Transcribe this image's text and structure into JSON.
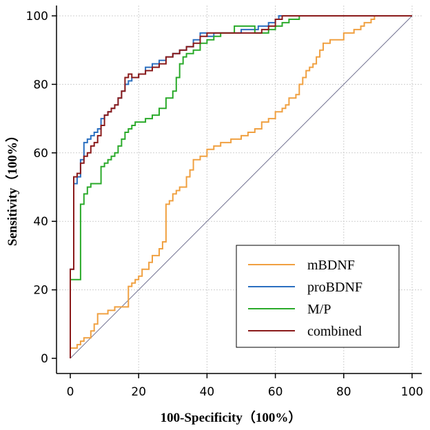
{
  "chart_data": {
    "type": "line",
    "title": "",
    "xlabel": "100-Specificity（100%）",
    "ylabel": "Sensitivity（100%）",
    "xlim": [
      0,
      100
    ],
    "ylim": [
      0,
      100
    ],
    "xticks": [
      "0",
      "20",
      "40",
      "60",
      "80",
      "100"
    ],
    "yticks": [
      "0",
      "20",
      "40",
      "60",
      "80",
      "100"
    ],
    "grid": true,
    "legend_position": "bottom-right",
    "reference_line": {
      "x": [
        0,
        100
      ],
      "y": [
        0,
        100
      ],
      "color": "#6f6f8f"
    },
    "series": [
      {
        "name": "mBDNF",
        "color": "#f0a040",
        "x": [
          0,
          0,
          2,
          2,
          3,
          3,
          4,
          4,
          6,
          6,
          7,
          7,
          8,
          8,
          11,
          11,
          13,
          13,
          17,
          17,
          18,
          18,
          19,
          19,
          20,
          20,
          21,
          21,
          23,
          23,
          24,
          24,
          26,
          26,
          27,
          27,
          28,
          28,
          29,
          29,
          30,
          30,
          31,
          31,
          32,
          32,
          34,
          34,
          35,
          35,
          36,
          36,
          38,
          38,
          40,
          40,
          42,
          42,
          44,
          44,
          47,
          47,
          50,
          50,
          52,
          52,
          54,
          54,
          56,
          56,
          58,
          58,
          60,
          60,
          62,
          62,
          63,
          63,
          64,
          64,
          66,
          66,
          67,
          67,
          68,
          68,
          69,
          69,
          70,
          70,
          71,
          71,
          72,
          72,
          73,
          73,
          74,
          74,
          76,
          76,
          80,
          80,
          83,
          83,
          85,
          85,
          86,
          86,
          88,
          88,
          89,
          89,
          90,
          90,
          92,
          92,
          100
        ],
        "y": [
          0,
          3,
          3,
          4,
          4,
          5,
          5,
          6,
          6,
          8,
          8,
          10,
          10,
          13,
          13,
          14,
          14,
          15,
          15,
          21,
          21,
          22,
          22,
          23,
          23,
          24,
          24,
          26,
          26,
          28,
          28,
          30,
          30,
          32,
          32,
          34,
          34,
          45,
          45,
          46,
          46,
          48,
          48,
          49,
          49,
          50,
          50,
          53,
          53,
          55,
          55,
          58,
          58,
          59,
          59,
          61,
          61,
          62,
          62,
          63,
          63,
          64,
          64,
          65,
          65,
          66,
          66,
          67,
          67,
          69,
          69,
          70,
          70,
          72,
          72,
          73,
          73,
          74,
          74,
          76,
          76,
          77,
          77,
          80,
          80,
          82,
          82,
          84,
          84,
          85,
          85,
          86,
          86,
          88,
          88,
          90,
          90,
          92,
          92,
          93,
          93,
          95,
          95,
          96,
          96,
          97,
          97,
          98,
          98,
          99,
          99,
          100,
          100,
          100,
          100,
          100,
          100
        ]
      },
      {
        "name": "proBDNF",
        "color": "#2a6fc0",
        "x": [
          0,
          0,
          1,
          1,
          2,
          2,
          3,
          3,
          4,
          4,
          5,
          5,
          6,
          6,
          7,
          7,
          8,
          8,
          9,
          9,
          10,
          10,
          11,
          11,
          12,
          12,
          13,
          13,
          14,
          14,
          15,
          15,
          16,
          16,
          17,
          17,
          18,
          18,
          20,
          20,
          22,
          22,
          24,
          24,
          26,
          26,
          28,
          28,
          30,
          30,
          32,
          32,
          34,
          34,
          36,
          36,
          38,
          38,
          40,
          40,
          42,
          42,
          45,
          45,
          50,
          50,
          55,
          55,
          58,
          58,
          60,
          60,
          61,
          61,
          100
        ],
        "y": [
          0,
          26,
          26,
          51,
          51,
          53,
          53,
          58,
          58,
          63,
          63,
          64,
          64,
          65,
          65,
          66,
          66,
          67,
          67,
          70,
          70,
          71,
          71,
          72,
          72,
          73,
          73,
          74,
          74,
          76,
          76,
          78,
          78,
          80,
          80,
          81,
          81,
          82,
          82,
          83,
          83,
          85,
          85,
          86,
          86,
          87,
          87,
          88,
          88,
          89,
          89,
          90,
          90,
          91,
          91,
          93,
          93,
          95,
          95,
          94,
          94,
          95,
          95,
          95,
          95,
          96,
          96,
          97,
          97,
          98,
          98,
          99,
          99,
          100,
          100
        ]
      },
      {
        "name": "M/P",
        "color": "#2aaa2a",
        "x": [
          0,
          0,
          3,
          3,
          4,
          4,
          5,
          5,
          6,
          6,
          9,
          9,
          10,
          10,
          11,
          11,
          12,
          12,
          13,
          13,
          14,
          14,
          15,
          15,
          16,
          16,
          17,
          17,
          18,
          18,
          19,
          19,
          22,
          22,
          24,
          24,
          26,
          26,
          28,
          28,
          30,
          30,
          31,
          31,
          32,
          32,
          33,
          33,
          34,
          34,
          36,
          36,
          38,
          38,
          40,
          40,
          42,
          42,
          44,
          44,
          48,
          48,
          54,
          54,
          58,
          58,
          60,
          60,
          62,
          62,
          64,
          64,
          67,
          67,
          100
        ],
        "y": [
          0,
          23,
          23,
          45,
          45,
          48,
          48,
          50,
          50,
          51,
          51,
          56,
          56,
          57,
          57,
          58,
          58,
          59,
          59,
          60,
          60,
          62,
          62,
          64,
          64,
          66,
          66,
          67,
          67,
          68,
          68,
          69,
          69,
          70,
          70,
          71,
          71,
          73,
          73,
          76,
          76,
          78,
          78,
          82,
          82,
          86,
          86,
          88,
          88,
          89,
          89,
          90,
          90,
          92,
          92,
          93,
          93,
          94,
          94,
          95,
          95,
          97,
          97,
          95,
          95,
          96,
          96,
          97,
          97,
          98,
          98,
          99,
          99,
          100,
          100
        ]
      },
      {
        "name": "combined",
        "color": "#8a1a1a",
        "x": [
          0,
          0,
          1,
          1,
          2,
          2,
          3,
          3,
          4,
          4,
          5,
          5,
          6,
          6,
          7,
          7,
          8,
          8,
          9,
          9,
          10,
          10,
          11,
          11,
          12,
          12,
          13,
          13,
          14,
          14,
          15,
          15,
          16,
          16,
          17,
          17,
          18,
          18,
          20,
          20,
          22,
          22,
          24,
          24,
          26,
          26,
          28,
          28,
          30,
          30,
          32,
          32,
          34,
          34,
          36,
          36,
          38,
          38,
          40,
          40,
          42,
          42,
          44,
          44,
          50,
          50,
          56,
          56,
          58,
          58,
          60,
          60,
          62,
          62,
          100
        ],
        "y": [
          0,
          26,
          26,
          53,
          53,
          54,
          54,
          57,
          57,
          59,
          59,
          60,
          60,
          62,
          62,
          63,
          63,
          65,
          65,
          68,
          68,
          71,
          71,
          72,
          72,
          73,
          73,
          74,
          74,
          76,
          76,
          78,
          78,
          82,
          82,
          83,
          83,
          82,
          82,
          83,
          83,
          84,
          84,
          85,
          85,
          86,
          86,
          88,
          88,
          89,
          89,
          90,
          90,
          91,
          91,
          92,
          92,
          94,
          94,
          95,
          95,
          95,
          95,
          95,
          95,
          95,
          95,
          96,
          96,
          97,
          97,
          99,
          99,
          100,
          100
        ]
      }
    ]
  }
}
